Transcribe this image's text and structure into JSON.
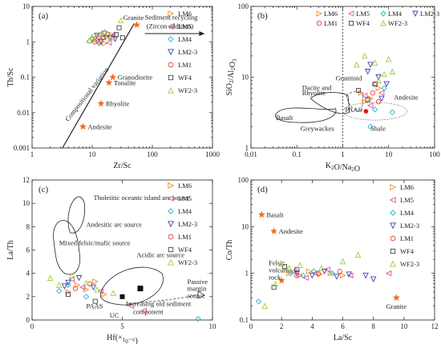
{
  "legend_series": [
    {
      "name": "LM6",
      "marker": "tri-right",
      "color": "#f28a1a"
    },
    {
      "name": "LM5",
      "marker": "tri-left",
      "color": "#e0509a"
    },
    {
      "name": "LM4",
      "marker": "diamond",
      "color": "#22b7c9"
    },
    {
      "name": "LM2-3",
      "marker": "tri-down",
      "color": "#4a3fb3"
    },
    {
      "name": "LM1",
      "marker": "circle",
      "color": "#e8413c"
    },
    {
      "name": "WF4",
      "marker": "square",
      "color": "#444444"
    },
    {
      "name": "WF2-3",
      "marker": "tri-up",
      "color": "#9bcf3c"
    }
  ],
  "reference_color": "#f26a1a",
  "chart_data": [
    {
      "panel": "(a)",
      "type": "scatter",
      "xlabel": "Zr/Sc",
      "ylabel": "Th/Sc",
      "xscale": "log",
      "yscale": "log",
      "xlim": [
        1,
        1000
      ],
      "ylim": [
        0.001,
        10
      ],
      "xticks": [
        "1",
        "10",
        "100",
        "1000"
      ],
      "yticks": [
        "0.001",
        "0.01",
        "0.1",
        "1",
        "10"
      ],
      "reference_points": [
        {
          "label": "Granite",
          "x": 55,
          "y": 3.0
        },
        {
          "label": "Granodiorite",
          "x": 22,
          "y": 0.1
        },
        {
          "label": "Tonalite",
          "x": 19,
          "y": 0.07
        },
        {
          "label": "Rhyolite",
          "x": 14,
          "y": 0.018
        },
        {
          "label": "Andesite",
          "x": 7,
          "y": 0.004
        }
      ],
      "annotations": [
        "Sediment recycling",
        "(Zircon addition)",
        "Compositional variation"
      ],
      "series": [
        {
          "name": "LM6",
          "x": [
            14,
            18,
            12,
            21,
            16
          ],
          "y": [
            1.0,
            1.4,
            1.2,
            1.6,
            0.9
          ]
        },
        {
          "name": "LM5",
          "x": [
            15,
            11,
            19,
            22,
            13
          ],
          "y": [
            1.3,
            1.1,
            0.95,
            1.5,
            1.6
          ]
        },
        {
          "name": "LM4",
          "x": [
            10,
            13,
            17,
            9
          ],
          "y": [
            1.2,
            0.9,
            1.4,
            1.05
          ]
        },
        {
          "name": "LM2-3",
          "x": [
            12,
            16,
            20,
            24,
            14
          ],
          "y": [
            1.5,
            1.7,
            1.3,
            1.2,
            1.0
          ]
        },
        {
          "name": "LM1",
          "x": [
            11,
            15,
            18
          ],
          "y": [
            1.0,
            1.3,
            1.6
          ]
        },
        {
          "name": "WF4",
          "x": [
            25,
            28,
            32
          ],
          "y": [
            1.6,
            2.5,
            1.3
          ]
        },
        {
          "name": "WF2-3",
          "x": [
            9,
            10,
            13,
            16,
            20,
            30
          ],
          "y": [
            1.1,
            1.4,
            1.6,
            1.9,
            1.3,
            4.0
          ]
        }
      ]
    },
    {
      "panel": "(b)",
      "type": "scatter",
      "xlabel": "K2O/Na2O",
      "ylabel": "SiO2/Al2O3",
      "xscale": "log",
      "yscale": "log",
      "xlim": [
        0.01,
        100
      ],
      "ylim": [
        1,
        100
      ],
      "xticks": [
        "0.01",
        "0.1",
        "1",
        "10",
        "100"
      ],
      "yticks": [
        "1",
        "10",
        "100"
      ],
      "fields": [
        "Granitoid",
        "Dacite and Rhyolite",
        "Andesite",
        "Basalt",
        "Greywackes",
        "Shale"
      ],
      "reference_points": [
        {
          "label": "PAAS",
          "x": 3.2,
          "y": 3.3
        }
      ],
      "series": [
        {
          "name": "LM6",
          "x": [
            2.5,
            4,
            6,
            3
          ],
          "y": [
            6,
            5,
            7,
            4.5
          ]
        },
        {
          "name": "LM5",
          "x": [
            3,
            5,
            7,
            4
          ],
          "y": [
            5.5,
            8,
            6,
            4
          ]
        },
        {
          "name": "LM4",
          "x": [
            5,
            8,
            12,
            4
          ],
          "y": [
            3.5,
            7,
            3.2,
            2.0
          ]
        },
        {
          "name": "LM2-3",
          "x": [
            4,
            6,
            9,
            3.5,
            7
          ],
          "y": [
            15,
            10,
            8,
            12,
            5
          ]
        },
        {
          "name": "LM1",
          "x": [
            4.5,
            6
          ],
          "y": [
            6,
            4.5
          ]
        },
        {
          "name": "WF4",
          "x": [
            2.2,
            3.5,
            5
          ],
          "y": [
            6.5,
            4.8,
            8
          ]
        },
        {
          "name": "WF2-3",
          "x": [
            2,
            3,
            5,
            8,
            10,
            12,
            6
          ],
          "y": [
            15,
            20,
            16,
            11,
            18,
            12,
            9
          ]
        }
      ]
    },
    {
      "panel": "(c)",
      "type": "scatter",
      "xlabel": "Hf(×10⁻⁶)",
      "ylabel": "La/Th",
      "xlim": [
        0,
        10
      ],
      "ylim": [
        0,
        12
      ],
      "xticks": [
        "0",
        "5",
        "10"
      ],
      "yticks": [
        "0",
        "2",
        "4",
        "6",
        "8",
        "10",
        "12"
      ],
      "fields": [
        "Tholeiitic oceanic island arc source",
        "Andesitic arc source",
        "Mixed felsic/mafic source",
        "Acidic arc source",
        "Passive margin source"
      ],
      "annotations": [
        "Increasing old sediment",
        "component"
      ],
      "reference_points": [
        {
          "label": "PAAS",
          "x": 5.0,
          "y": 2.0
        },
        {
          "label": "UC",
          "x": 5.8,
          "y": 2.7
        }
      ],
      "series": [
        {
          "name": "LM6",
          "x": [
            2.5,
            3.0,
            3.5,
            2.0,
            4.0
          ],
          "y": [
            3.0,
            2.6,
            3.3,
            2.4,
            2.2
          ]
        },
        {
          "name": "LM5",
          "x": [
            2.2,
            2.8,
            3.8,
            5.5,
            6.2
          ],
          "y": [
            3.5,
            2.8,
            2.5,
            1.2,
            0.8
          ]
        },
        {
          "name": "LM4",
          "x": [
            1.5,
            2.0,
            3.0,
            9.2
          ],
          "y": [
            2.5,
            3.0,
            2.0,
            0.1
          ]
        },
        {
          "name": "LM2-3",
          "x": [
            2.0,
            2.6,
            3.4,
            1.8
          ],
          "y": [
            3.2,
            3.6,
            2.8,
            2.9
          ]
        },
        {
          "name": "LM1",
          "x": [
            2.4,
            3.2
          ],
          "y": [
            2.7,
            3.1
          ]
        },
        {
          "name": "WF4",
          "x": [
            2.0,
            3.5
          ],
          "y": [
            2.2,
            1.6
          ]
        },
        {
          "name": "WF2-3",
          "x": [
            1.0,
            1.5,
            2.2,
            3.0,
            3.6,
            4.5
          ],
          "y": [
            3.6,
            3.0,
            3.8,
            3.2,
            2.6,
            2.3
          ]
        }
      ]
    },
    {
      "panel": "(d)",
      "type": "scatter",
      "xlabel": "La/Sc",
      "ylabel": "Co/Th",
      "yscale": "log",
      "xlim": [
        0,
        12
      ],
      "ylim": [
        0.1,
        100
      ],
      "xticks": [
        "0",
        "2",
        "4",
        "6",
        "8",
        "10",
        "12"
      ],
      "yticks": [
        "0.1",
        "1",
        "10",
        "100"
      ],
      "reference_points": [
        {
          "label": "Basalt",
          "x": 0.7,
          "y": 18
        },
        {
          "label": "Andesite",
          "x": 1.5,
          "y": 8
        },
        {
          "label": "Felsic volcanic rock",
          "x": 2.0,
          "y": 0.7
        },
        {
          "label": "Granite",
          "x": 9.5,
          "y": 0.3
        }
      ],
      "series": [
        {
          "name": "LM6",
          "x": [
            2.5,
            3.2,
            3.8,
            4.5,
            5.2,
            6.0
          ],
          "y": [
            1.0,
            0.9,
            1.1,
            0.95,
            1.0,
            0.9
          ]
        },
        {
          "name": "LM5",
          "x": [
            2.8,
            3.6,
            4.2,
            5.0,
            6.5,
            9.0
          ],
          "y": [
            1.1,
            0.8,
            1.0,
            1.2,
            0.9,
            1.0
          ]
        },
        {
          "name": "LM4",
          "x": [
            0.5,
            2.6,
            3.4,
            4.1,
            5.3
          ],
          "y": [
            0.25,
            1.0,
            0.9,
            1.1,
            1.0
          ]
        },
        {
          "name": "LM2-3",
          "x": [
            3.0,
            4.0,
            4.8,
            5.6,
            6.4,
            7.5,
            8.0
          ],
          "y": [
            1.0,
            0.9,
            1.1,
            0.85,
            0.95,
            0.9,
            0.75
          ]
        },
        {
          "name": "LM1",
          "x": [
            3.0,
            4.4,
            5.8
          ],
          "y": [
            0.9,
            1.0,
            1.1
          ]
        },
        {
          "name": "WF4",
          "x": [
            1.5,
            2.2,
            3.0
          ],
          "y": [
            0.5,
            1.4,
            1.2
          ]
        },
        {
          "name": "WF2-3",
          "x": [
            0.9,
            1.6,
            2.0,
            2.5,
            3.2,
            4.6,
            6.0,
            7.0
          ],
          "y": [
            0.2,
            0.6,
            1.6,
            1.3,
            1.5,
            1.3,
            1.8,
            2.5
          ]
        }
      ]
    }
  ]
}
